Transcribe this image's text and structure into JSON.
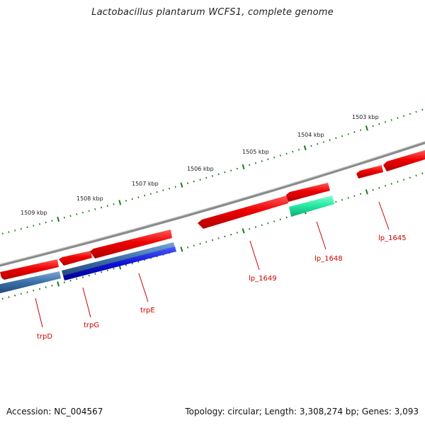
{
  "title": "Lactobacillus plantarum WCFS1, complete genome",
  "footer": {
    "accession": "Accession: NC_004567",
    "summary": "Topology: circular; Length: 3,308,274 bp; Genes: 3,093"
  },
  "scale_labels": [
    "1503 kbp",
    "1504 kbp",
    "1505 kbp",
    "1506 kbp",
    "1507 kbp",
    "1508 kbp",
    "1509 kbp"
  ],
  "gene_labels": [
    "lp_1645",
    "lp_1648",
    "lp_1649",
    "trpE",
    "trpG",
    "trpD"
  ],
  "colors": {
    "backbone": "#808080",
    "forward_gene": "#ee0000",
    "reverse_gene": "#1a1acc",
    "reverse_gene_alt": "#3a6fa8",
    "highlight_gene": "#22e8a0",
    "tick": "#1a7a1a",
    "label": "#cc0000"
  }
}
